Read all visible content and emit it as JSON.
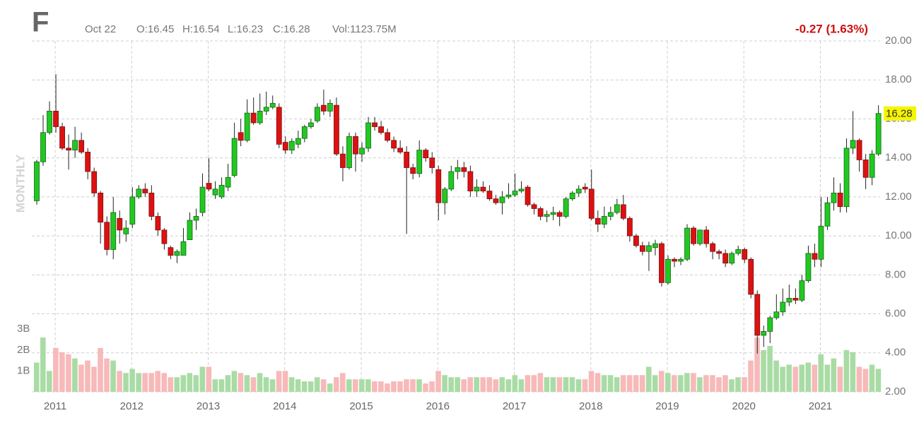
{
  "chart_data": {
    "type": "candlestick",
    "title": "F",
    "header": [
      "Oct 22",
      "O:16.45",
      "H:16.54",
      "L:16.23",
      "C:16.28",
      "Vol:1123.75M"
    ],
    "change": "-0.27 (1.63%)",
    "y_axis_label": "MONTHLY",
    "categories": [
      null,
      null,
      null,
      "2011",
      null,
      null,
      null,
      null,
      null,
      null,
      null,
      null,
      null,
      null,
      null,
      "2012",
      null,
      null,
      null,
      null,
      null,
      null,
      null,
      null,
      null,
      null,
      null,
      "2013",
      null,
      null,
      null,
      null,
      null,
      null,
      null,
      null,
      null,
      null,
      null,
      "2014",
      null,
      null,
      null,
      null,
      null,
      null,
      null,
      null,
      null,
      null,
      null,
      "2015",
      null,
      null,
      null,
      null,
      null,
      null,
      null,
      null,
      null,
      null,
      null,
      "2016",
      null,
      null,
      null,
      null,
      null,
      null,
      null,
      null,
      null,
      null,
      null,
      "2017",
      null,
      null,
      null,
      null,
      null,
      null,
      null,
      null,
      null,
      null,
      null,
      "2018",
      null,
      null,
      null,
      null,
      null,
      null,
      null,
      null,
      null,
      null,
      null,
      "2019",
      null,
      null,
      null,
      null,
      null,
      null,
      null,
      null,
      null,
      null,
      null,
      "2020",
      null,
      null,
      null,
      null,
      null,
      null,
      null,
      null,
      null,
      null,
      null,
      "2021",
      null,
      null,
      null,
      null,
      null,
      null,
      null,
      null,
      null
    ],
    "open": [
      11.8,
      13.8,
      15.3,
      16.4,
      15.6,
      14.5,
      14.4,
      14.9,
      14.3,
      13.3,
      12.2,
      10.7,
      9.3,
      10.9,
      10.1,
      10.6,
      12.0,
      12.4,
      12.2,
      11.0,
      10.3,
      9.4,
      9.0,
      9.0,
      9.8,
      10.8,
      11.2,
      12.7,
      12.1,
      12.0,
      12.5,
      13.1,
      15.3,
      14.9,
      16.3,
      15.8,
      16.4,
      16.6,
      16.6,
      14.8,
      14.4,
      14.7,
      15.0,
      15.6,
      15.9,
      16.7,
      16.4,
      16.7,
      14.2,
      13.5,
      15.1,
      14.2,
      14.5,
      15.8,
      15.6,
      15.3,
      14.9,
      14.5,
      14.3,
      13.5,
      13.2,
      14.4,
      14.0,
      13.4,
      11.7,
      12.4,
      13.3,
      13.5,
      13.3,
      12.3,
      12.5,
      12.3,
      11.9,
      11.7,
      12.0,
      12.1,
      12.3,
      12.5,
      11.6,
      11.4,
      11.0,
      11.1,
      11.2,
      11.0,
      11.9,
      12.2,
      12.5,
      12.4,
      10.9,
      10.6,
      11.0,
      11.2,
      11.6,
      10.9,
      10.0,
      9.5,
      9.2,
      9.4,
      9.6,
      7.6,
      8.8,
      8.7,
      8.8,
      10.4,
      9.6,
      10.3,
      9.6,
      9.2,
      9.1,
      8.6,
      9.1,
      9.3,
      8.8,
      7.0,
      4.9,
      5.1,
      5.8,
      6.1,
      6.6,
      6.8,
      6.7,
      7.7,
      9.1,
      8.8,
      10.5,
      11.7,
      12.2,
      11.5,
      14.5,
      14.9,
      13.9,
      13.0,
      14.2
    ],
    "high": [
      13.9,
      16.2,
      16.9,
      18.3,
      15.8,
      15.2,
      15.6,
      15.3,
      14.5,
      13.5,
      12.3,
      11.0,
      12.0,
      11.3,
      10.8,
      12.5,
      12.6,
      12.7,
      12.6,
      11.2,
      10.4,
      9.5,
      9.3,
      10.4,
      11.2,
      11.4,
      13.2,
      14.0,
      12.8,
      13.0,
      13.7,
      15.8,
      16.0,
      17.0,
      17.1,
      17.3,
      17.4,
      17.2,
      16.8,
      15.1,
      15.0,
      15.4,
      15.7,
      16.0,
      16.8,
      17.5,
      17.0,
      17.1,
      14.6,
      15.3,
      15.3,
      14.8,
      16.1,
      16.1,
      15.9,
      15.5,
      15.1,
      14.9,
      14.6,
      13.7,
      14.9,
      14.5,
      14.3,
      13.6,
      12.5,
      13.6,
      13.9,
      13.8,
      13.6,
      12.9,
      12.8,
      12.6,
      12.1,
      12.3,
      12.7,
      13.2,
      12.8,
      12.6,
      11.7,
      11.5,
      11.3,
      11.5,
      11.3,
      12.0,
      12.3,
      12.6,
      12.7,
      13.4,
      11.3,
      11.5,
      11.5,
      11.9,
      12.1,
      11.0,
      10.1,
      9.7,
      9.7,
      9.8,
      9.7,
      9.0,
      8.9,
      8.9,
      10.6,
      10.5,
      10.3,
      10.5,
      9.7,
      9.3,
      9.3,
      9.2,
      9.5,
      9.4,
      8.9,
      7.2,
      5.4,
      5.9,
      7.0,
      7.3,
      7.5,
      7.3,
      8.0,
      9.5,
      9.6,
      12.0,
      12.0,
      13.0,
      12.7,
      15.0,
      16.4,
      15.0,
      14.2,
      14.4,
      16.7
    ],
    "low": [
      11.6,
      13.6,
      15.2,
      15.3,
      14.4,
      13.4,
      14.0,
      14.2,
      12.9,
      12.0,
      9.6,
      9.0,
      8.8,
      9.6,
      9.7,
      10.4,
      11.9,
      12.0,
      10.8,
      10.0,
      9.3,
      8.8,
      8.6,
      9.0,
      9.8,
      10.3,
      11.0,
      12.3,
      11.9,
      11.9,
      12.3,
      13.0,
      14.6,
      14.8,
      15.7,
      15.7,
      16.2,
      16.5,
      14.5,
      14.2,
      14.2,
      14.5,
      14.8,
      15.5,
      15.8,
      16.2,
      16.1,
      14.1,
      12.8,
      13.4,
      13.3,
      13.8,
      14.3,
      15.4,
      15.2,
      14.8,
      14.3,
      14.2,
      10.1,
      12.9,
      13.0,
      13.8,
      13.2,
      10.8,
      11.1,
      12.3,
      12.9,
      13.0,
      12.0,
      12.0,
      12.2,
      11.8,
      11.6,
      11.1,
      11.9,
      12.0,
      12.2,
      11.5,
      11.1,
      10.8,
      10.7,
      10.8,
      10.5,
      10.9,
      11.8,
      12.0,
      12.2,
      10.8,
      10.2,
      10.4,
      10.8,
      11.1,
      10.8,
      9.7,
      9.4,
      9.0,
      8.2,
      9.0,
      7.4,
      7.5,
      8.4,
      8.5,
      8.7,
      9.5,
      9.5,
      9.4,
      8.8,
      8.8,
      8.4,
      8.5,
      9.0,
      8.6,
      6.8,
      3.96,
      4.3,
      4.5,
      5.7,
      5.9,
      6.4,
      6.5,
      6.6,
      7.6,
      8.4,
      8.4,
      10.3,
      11.3,
      11.2,
      11.2,
      14.2,
      13.3,
      12.4,
      12.6,
      14.1
    ],
    "close": [
      13.8,
      15.3,
      16.4,
      15.6,
      14.5,
      14.4,
      14.9,
      14.3,
      13.3,
      12.2,
      10.7,
      9.3,
      11.2,
      10.3,
      10.4,
      12.0,
      12.4,
      12.2,
      11.0,
      10.3,
      9.6,
      9.0,
      9.2,
      9.7,
      10.8,
      11.0,
      12.5,
      12.4,
      12.4,
      12.6,
      13.0,
      15.0,
      14.9,
      16.3,
      15.8,
      16.4,
      16.6,
      16.8,
      14.7,
      14.4,
      14.85,
      15.0,
      15.6,
      15.8,
      16.6,
      16.4,
      16.8,
      14.2,
      13.5,
      15.1,
      14.2,
      14.5,
      15.8,
      15.6,
      15.3,
      14.9,
      14.5,
      14.3,
      13.5,
      13.2,
      14.4,
      14.0,
      13.5,
      11.7,
      12.4,
      13.3,
      13.5,
      13.3,
      12.3,
      12.5,
      12.3,
      11.9,
      11.7,
      12.0,
      12.1,
      12.3,
      12.4,
      11.6,
      11.4,
      11.0,
      11.1,
      11.2,
      11.0,
      11.9,
      12.2,
      12.4,
      12.4,
      10.9,
      10.6,
      11.0,
      11.2,
      11.6,
      10.9,
      10.0,
      9.5,
      9.2,
      9.5,
      9.6,
      7.6,
      8.8,
      8.7,
      8.8,
      10.4,
      9.6,
      10.3,
      9.6,
      9.2,
      9.1,
      8.6,
      9.1,
      9.3,
      8.8,
      7.0,
      4.9,
      5.1,
      5.8,
      6.1,
      6.6,
      6.8,
      6.7,
      7.7,
      9.1,
      8.8,
      10.5,
      11.7,
      12.2,
      11.5,
      14.5,
      14.9,
      13.9,
      13.0,
      14.2,
      16.28
    ],
    "volume": [
      1.4,
      2.6,
      1.0,
      2.1,
      1.9,
      1.8,
      1.6,
      1.3,
      1.5,
      1.2,
      2.1,
      1.6,
      1.5,
      1.0,
      0.9,
      1.1,
      0.9,
      0.9,
      0.9,
      1.0,
      0.9,
      0.7,
      0.7,
      0.8,
      0.9,
      0.8,
      1.2,
      1.2,
      0.6,
      0.6,
      0.8,
      1.0,
      0.9,
      0.8,
      0.7,
      0.9,
      0.7,
      0.6,
      1.0,
      1.0,
      0.7,
      0.6,
      0.5,
      0.5,
      0.7,
      0.6,
      0.4,
      0.7,
      0.9,
      0.6,
      0.6,
      0.6,
      0.6,
      0.5,
      0.5,
      0.4,
      0.5,
      0.5,
      0.6,
      0.6,
      0.6,
      0.4,
      0.5,
      1.0,
      0.8,
      0.7,
      0.7,
      0.6,
      0.7,
      0.7,
      0.7,
      0.7,
      0.6,
      0.7,
      0.6,
      0.8,
      0.6,
      0.8,
      0.8,
      0.9,
      0.7,
      0.7,
      0.7,
      0.7,
      0.7,
      0.6,
      0.6,
      1.0,
      0.9,
      0.8,
      0.8,
      0.7,
      0.8,
      0.8,
      0.8,
      0.8,
      1.2,
      0.8,
      1.0,
      0.9,
      0.8,
      0.8,
      0.9,
      0.9,
      0.7,
      0.8,
      0.8,
      0.7,
      0.8,
      0.6,
      0.7,
      0.7,
      1.5,
      2.6,
      2.0,
      2.2,
      1.5,
      1.2,
      1.3,
      1.2,
      1.3,
      1.4,
      1.3,
      1.8,
      1.3,
      1.6,
      1.2,
      2.0,
      1.9,
      1.2,
      1.1,
      1.3,
      1.1
    ],
    "ylim": [
      2,
      20
    ],
    "yticks": [
      {
        "value": 2,
        "label": "2.00"
      },
      {
        "value": 4,
        "label": "4.00"
      },
      {
        "value": 6,
        "label": "6.00"
      },
      {
        "value": 8,
        "label": "8.00"
      },
      {
        "value": 10,
        "label": "10.00"
      },
      {
        "value": 12,
        "label": "12.00"
      },
      {
        "value": 14,
        "label": "14.00"
      },
      {
        "value": 16,
        "label": "16.00"
      },
      {
        "value": 18,
        "label": "18.00"
      },
      {
        "value": 20,
        "label": "20.00"
      }
    ],
    "y2lim": [
      0,
      16.8
    ],
    "y2ticks": [
      {
        "value": 1,
        "label": "1B"
      },
      {
        "value": 2,
        "label": "2B"
      },
      {
        "value": 3,
        "label": "3B"
      }
    ],
    "grid": true,
    "up_color": "#22c822",
    "down_color": "#dd1111",
    "up_volume_color": "#a9dca5",
    "down_volume_color": "#f7b9b9"
  }
}
